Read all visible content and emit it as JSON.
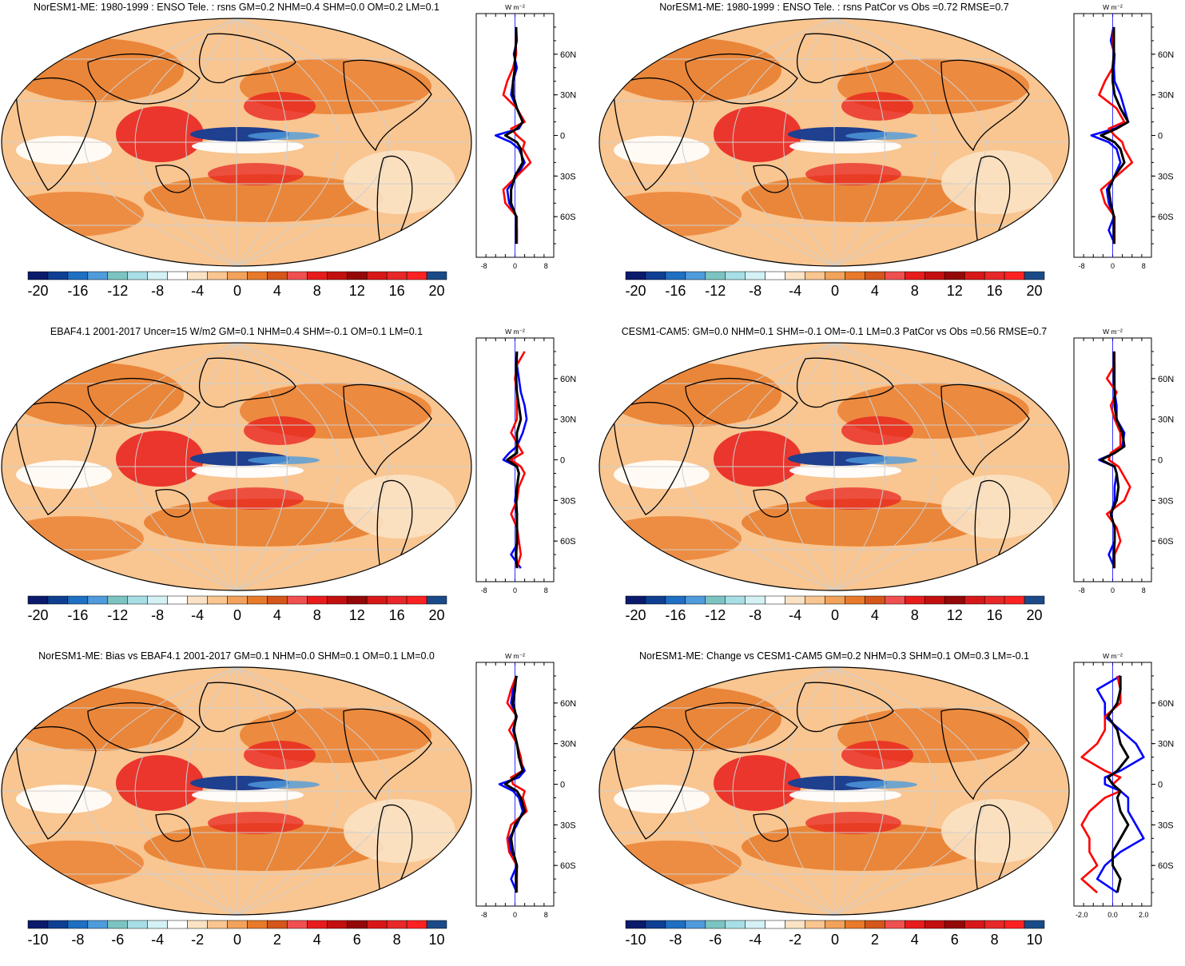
{
  "units_label": "W m⁻²",
  "lat_ticks": [
    "60N",
    "30N",
    "0",
    "30S",
    "60S"
  ],
  "colors": {
    "obs": "#0000ff",
    "model": "#ff0000",
    "diff": "#000000",
    "ocean_positive": "#e87a2a",
    "land_positive": "#f5b37a",
    "negative": "#1f3f8f"
  },
  "palette": [
    "#0a1b6b",
    "#0e3f93",
    "#1f6fc2",
    "#4f9bdc",
    "#7cc4c2",
    "#a8dfe6",
    "#d4f1f5",
    "#ffffff",
    "#fbe2c4",
    "#f9c590",
    "#f2a25a",
    "#e87a2a",
    "#d4561a",
    "#f05050",
    "#e81c1c",
    "#c40f0f",
    "#940808",
    "#d81818",
    "#e82828",
    "#ff2222",
    "#1a4a88"
  ],
  "panels": [
    {
      "id": "model",
      "title": "NorESM1-ME: 1980-1999 : ENSO Tele. : rsns GM=0.2 NHM=0.4 SHM=0.0 OM=0.2 LM=0.1",
      "colorbar_labels": [
        "-20",
        "-16",
        "-12",
        "-8",
        "-4",
        "0",
        "4",
        "8",
        "12",
        "16",
        "20"
      ],
      "profile_ticks": [
        "-8",
        "0",
        "8"
      ],
      "profile_range": [
        -10,
        10
      ]
    },
    {
      "id": "model-vs-obs",
      "title": "NorESM1-ME: 1980-1999 : ENSO Tele. : rsns PatCor vs Obs =0.72 RMSE=0.7",
      "colorbar_labels": [
        "-20",
        "-16",
        "-12",
        "-8",
        "-4",
        "0",
        "4",
        "8",
        "12",
        "16",
        "20"
      ],
      "profile_ticks": [
        "-8",
        "0",
        "8"
      ],
      "profile_range": [
        -10,
        10
      ]
    },
    {
      "id": "obs",
      "title": "EBAF4.1 2001-2017 Uncer=15 W/m2 GM=0.1 NHM=0.4 SHM=-0.1 OM=0.1 LM=0.1",
      "colorbar_labels": [
        "-20",
        "-16",
        "-12",
        "-8",
        "-4",
        "0",
        "4",
        "8",
        "12",
        "16",
        "20"
      ],
      "profile_ticks": [
        "-8",
        "0",
        "8"
      ],
      "profile_range": [
        -10,
        10
      ]
    },
    {
      "id": "reference-model",
      "title": "CESM1-CAM5: GM=0.0 NHM=0.1 SHM=-0.1 OM=-0.1 LM=0.3 PatCor vs Obs =0.56 RMSE=0.7",
      "colorbar_labels": [
        "-20",
        "-16",
        "-12",
        "-8",
        "-4",
        "0",
        "4",
        "8",
        "12",
        "16",
        "20"
      ],
      "profile_ticks": [
        "-8",
        "0",
        "8"
      ],
      "profile_range": [
        -10,
        10
      ]
    },
    {
      "id": "bias",
      "title": "NorESM1-ME: Bias vs EBAF4.1 2001-2017 GM=0.1 NHM=0.0 SHM=0.1 OM=0.1 LM=0.0",
      "colorbar_labels": [
        "-10",
        "-8",
        "-6",
        "-4",
        "-2",
        "0",
        "2",
        "4",
        "6",
        "8",
        "10"
      ],
      "profile_ticks": [
        "-8",
        "0",
        "8"
      ],
      "profile_range": [
        -10,
        10
      ]
    },
    {
      "id": "change",
      "title": "NorESM1-ME: Change vs CESM1-CAM5 GM=0.2 NHM=0.3 SHM=0.1 OM=0.3 LM=-0.1",
      "colorbar_labels": [
        "-10",
        "-8",
        "-6",
        "-4",
        "-2",
        "0",
        "2",
        "4",
        "6",
        "8",
        "10"
      ],
      "profile_ticks": [
        "-2.0",
        "0.0",
        "2.0"
      ],
      "profile_range": [
        -2.5,
        2.5
      ]
    }
  ],
  "chart_data": [
    {
      "type": "line",
      "title": "NorESM1-ME: 1980-1999 : ENSO Tele. : rsns GM=0.2 NHM=0.4 SHM=0.0 OM=0.2 LM=0.1",
      "xlabel": "W m⁻²",
      "x_ticks": [
        -8,
        0,
        8
      ],
      "xlim": [
        -10,
        10
      ],
      "y_ticks": [
        "60N",
        "30N",
        "0",
        "30S",
        "60S"
      ],
      "y": [
        80,
        70,
        60,
        50,
        40,
        30,
        20,
        10,
        5,
        0,
        -5,
        -10,
        -20,
        -30,
        -40,
        -50,
        -60,
        -70,
        -80
      ],
      "series": [
        {
          "values": [
            0.3,
            0.5,
            -0.3,
            0.5,
            -0.5,
            -1.0,
            0.5,
            2.0,
            1.0,
            -5.0,
            -1.0,
            1.0,
            2.5,
            0.5,
            -2.0,
            -1.5,
            0.3,
            0.5,
            0.5
          ]
        },
        {
          "values": [
            0.3,
            0.2,
            0.3,
            -0.5,
            -2.0,
            -3.0,
            0.5,
            2.5,
            -1.0,
            0.5,
            2.5,
            2.0,
            4.0,
            0.5,
            -3.0,
            -2.5,
            0.5,
            0.5,
            0.5
          ]
        },
        {
          "values": [
            0.3,
            0.3,
            0.0,
            0.0,
            -0.5,
            -0.5,
            0.5,
            2.0,
            0.5,
            -2.5,
            0.5,
            1.5,
            2.0,
            0.0,
            -1.0,
            -1.0,
            0.3,
            0.3,
            0.3
          ]
        }
      ]
    },
    {
      "type": "line",
      "title": "NorESM1-ME: 1980-1999 : ENSO Tele. : rsns PatCor vs Obs =0.72 RMSE=0.7",
      "xlabel": "W m⁻²",
      "x_ticks": [
        -8,
        0,
        8
      ],
      "xlim": [
        -10,
        10
      ],
      "y_ticks": [
        "60N",
        "30N",
        "0",
        "30S",
        "60S"
      ],
      "y": [
        80,
        70,
        60,
        50,
        40,
        30,
        20,
        10,
        5,
        0,
        -5,
        -10,
        -20,
        -30,
        -40,
        -50,
        -60,
        -70,
        -80
      ],
      "series": [
        {
          "values": [
            0.2,
            -0.5,
            0.5,
            0.3,
            0.5,
            2.0,
            3.0,
            4.0,
            0.5,
            -5.5,
            -1.0,
            1.0,
            2.0,
            0.5,
            -1.5,
            -1.0,
            0.3,
            -1.0,
            0.5
          ]
        },
        {
          "values": [
            0.3,
            0.0,
            0.3,
            0.0,
            -2.0,
            -3.5,
            1.0,
            3.0,
            -1.0,
            0.5,
            2.5,
            3.0,
            5.0,
            1.0,
            -3.0,
            -2.0,
            0.5,
            0.5,
            0.5
          ]
        },
        {
          "values": [
            0.3,
            0.3,
            0.3,
            0.0,
            0.0,
            0.5,
            2.0,
            4.0,
            1.0,
            -3.0,
            0.5,
            2.0,
            3.0,
            0.5,
            -1.0,
            -0.5,
            0.3,
            0.3,
            0.3
          ]
        }
      ]
    },
    {
      "type": "line",
      "title": "EBAF4.1 2001-2017 Uncer=15 W/m2 GM=0.1 NHM=0.4 SHM=-0.1 OM=0.1 LM=0.1",
      "xlabel": "W m⁻²",
      "x_ticks": [
        -8,
        0,
        8
      ],
      "xlim": [
        -10,
        10
      ],
      "y_ticks": [
        "60N",
        "30N",
        "0",
        "30S",
        "60S"
      ],
      "y": [
        80,
        70,
        60,
        50,
        40,
        30,
        20,
        10,
        5,
        0,
        -5,
        -10,
        -20,
        -30,
        -40,
        -50,
        -60,
        -70,
        -80
      ],
      "series": [
        {
          "values": [
            0.5,
            0.5,
            1.0,
            1.5,
            2.5,
            3.0,
            2.0,
            0.5,
            -1.5,
            -3.0,
            0.5,
            1.0,
            0.5,
            0.0,
            0.5,
            0.5,
            1.0,
            -1.0,
            1.5
          ]
        },
        {
          "values": [
            2.5,
            0.5,
            0.0,
            0.5,
            0.5,
            0.5,
            -1.0,
            1.0,
            2.0,
            -1.0,
            1.5,
            2.5,
            1.0,
            0.5,
            -1.0,
            0.5,
            1.0,
            1.5,
            0.5
          ]
        },
        {
          "values": [
            0.5,
            0.3,
            0.3,
            0.5,
            1.0,
            1.5,
            0.5,
            0.5,
            0.5,
            -2.0,
            0.5,
            1.0,
            0.5,
            0.3,
            0.5,
            0.5,
            0.5,
            0.3,
            0.5
          ]
        }
      ]
    },
    {
      "type": "line",
      "title": "CESM1-CAM5: GM=0.0 NHM=0.1 SHM=-0.1 OM=-0.1 LM=0.3 PatCor vs Obs =0.56 RMSE=0.7",
      "xlabel": "W m⁻²",
      "x_ticks": [
        -8,
        0,
        8
      ],
      "xlim": [
        -10,
        10
      ],
      "y_ticks": [
        "60N",
        "30N",
        "0",
        "30S",
        "60S"
      ],
      "y": [
        80,
        70,
        60,
        50,
        40,
        30,
        20,
        10,
        5,
        0,
        -5,
        -10,
        -20,
        -30,
        -40,
        -50,
        -60,
        -70,
        -80
      ],
      "series": [
        {
          "values": [
            0.3,
            0.5,
            0.5,
            0.5,
            1.0,
            1.0,
            3.0,
            2.5,
            0.5,
            -3.5,
            0.5,
            1.0,
            0.5,
            0.5,
            -0.5,
            0.5,
            0.5,
            -1.0,
            0.5
          ]
        },
        {
          "values": [
            0.5,
            0.5,
            -1.5,
            1.0,
            -0.5,
            0.5,
            2.0,
            2.0,
            -0.5,
            -1.0,
            1.5,
            2.5,
            4.5,
            3.0,
            -1.5,
            1.0,
            2.0,
            0.5,
            0.5
          ]
        },
        {
          "values": [
            0.3,
            0.3,
            0.3,
            0.5,
            0.5,
            1.0,
            2.5,
            3.0,
            0.5,
            -3.0,
            0.5,
            1.0,
            1.5,
            1.0,
            -0.5,
            0.5,
            0.5,
            0.3,
            0.3
          ]
        }
      ]
    },
    {
      "type": "line",
      "title": "NorESM1-ME: Bias vs EBAF4.1 2001-2017 GM=0.1 NHM=0.0 SHM=0.1 OM=0.1 LM=0.0",
      "xlabel": "W m⁻²",
      "x_ticks": [
        -8,
        0,
        8
      ],
      "xlim": [
        -10,
        10
      ],
      "y_ticks": [
        "60N",
        "30N",
        "0",
        "30S",
        "60S"
      ],
      "y": [
        80,
        70,
        60,
        50,
        40,
        30,
        20,
        10,
        5,
        0,
        -5,
        -10,
        -20,
        -30,
        -40,
        -50,
        -60,
        -70,
        -80
      ],
      "series": [
        {
          "values": [
            0.5,
            -0.5,
            -1.0,
            0.5,
            -0.5,
            0.5,
            1.0,
            2.5,
            1.0,
            -4.0,
            -0.5,
            1.0,
            2.0,
            0.5,
            -1.5,
            -1.0,
            0.5,
            -1.0,
            0.5
          ]
        },
        {
          "values": [
            0.3,
            -1.0,
            -2.0,
            0.5,
            -1.5,
            0.5,
            1.5,
            2.0,
            -1.0,
            -0.5,
            2.5,
            2.0,
            3.0,
            -1.0,
            -2.0,
            -1.5,
            0.5,
            0.5,
            0.5
          ]
        },
        {
          "values": [
            0.3,
            0.0,
            -0.5,
            0.3,
            -0.3,
            0.5,
            1.0,
            2.0,
            0.0,
            -2.5,
            0.5,
            1.5,
            2.5,
            0.0,
            -1.0,
            -0.5,
            0.5,
            0.3,
            0.3
          ]
        }
      ]
    },
    {
      "type": "line",
      "title": "NorESM1-ME: Change vs CESM1-CAM5 GM=0.2 NHM=0.3 SHM=0.1 OM=0.3 LM=-0.1",
      "xlabel": "W m⁻²",
      "x_ticks": [
        -2.0,
        0.0,
        2.0
      ],
      "xlim": [
        -2.5,
        2.5
      ],
      "y_ticks": [
        "60N",
        "30N",
        "0",
        "30S",
        "60S"
      ],
      "y": [
        80,
        70,
        60,
        50,
        40,
        30,
        20,
        10,
        5,
        0,
        -5,
        -10,
        -20,
        -30,
        -40,
        -50,
        -60,
        -70,
        -80
      ],
      "series": [
        {
          "values": [
            0.5,
            -1.0,
            -0.5,
            -0.5,
            0.5,
            1.5,
            2.0,
            0.5,
            -0.5,
            -0.5,
            0.5,
            1.0,
            1.0,
            1.5,
            2.0,
            0.5,
            -0.5,
            -1.0,
            0.3
          ]
        },
        {
          "values": [
            0.3,
            0.5,
            0.5,
            -0.5,
            -0.5,
            -1.0,
            -2.0,
            -0.5,
            0.5,
            0.0,
            0.5,
            -0.5,
            -1.5,
            -2.0,
            -1.5,
            -1.5,
            -1.0,
            -2.0,
            -1.0
          ]
        },
        {
          "values": [
            0.5,
            0.5,
            0.3,
            -0.3,
            0.3,
            0.5,
            1.0,
            0.3,
            -0.3,
            0.0,
            0.5,
            0.3,
            0.5,
            1.0,
            0.5,
            0.0,
            0.0,
            0.5,
            0.3
          ]
        }
      ]
    }
  ]
}
